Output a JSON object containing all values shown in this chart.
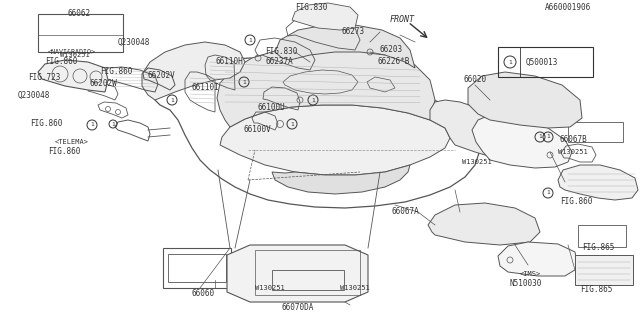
{
  "bg_color": "#ffffff",
  "line_color": "#555555",
  "text_color": "#333333",
  "fig_width": 6.4,
  "fig_height": 3.2,
  "dpi": 100,
  "bottom_code": "A660001906",
  "legend_text": "Q500013",
  "front_label": "FRONT"
}
